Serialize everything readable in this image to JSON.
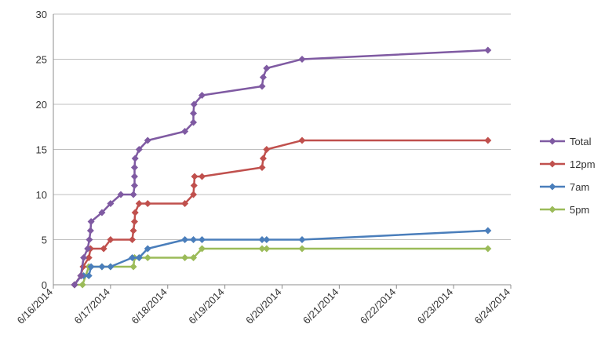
{
  "chart_data": {
    "type": "line",
    "title": "",
    "xlabel": "",
    "ylabel": "",
    "ylim": [
      0,
      30
    ],
    "y_ticks": [
      0,
      5,
      10,
      15,
      20,
      25,
      30
    ],
    "x_ticks": [
      "6/16/2014",
      "6/17/2014",
      "6/18/2014",
      "6/19/2014",
      "6/20/2014",
      "6/21/2014",
      "6/22/2014",
      "6/23/2014",
      "6/24/2014"
    ],
    "grid": "horizontal",
    "legend_position": "right",
    "series": [
      {
        "name": "Total",
        "color": "#7f5aa2",
        "points": [
          [
            0.37,
            0
          ],
          [
            0.48,
            1
          ],
          [
            0.53,
            3
          ],
          [
            0.6,
            4
          ],
          [
            0.63,
            5
          ],
          [
            0.65,
            6
          ],
          [
            0.66,
            7
          ],
          [
            0.85,
            8
          ],
          [
            1.0,
            9
          ],
          [
            1.18,
            10
          ],
          [
            1.4,
            10
          ],
          [
            1.42,
            11
          ],
          [
            1.42,
            12
          ],
          [
            1.42,
            13
          ],
          [
            1.43,
            14
          ],
          [
            1.5,
            15
          ],
          [
            1.65,
            16
          ],
          [
            2.3,
            17
          ],
          [
            2.45,
            18
          ],
          [
            2.45,
            19
          ],
          [
            2.46,
            20
          ],
          [
            2.6,
            21
          ],
          [
            3.65,
            22
          ],
          [
            3.67,
            23
          ],
          [
            3.73,
            24
          ],
          [
            4.35,
            25
          ],
          [
            7.6,
            26
          ]
        ]
      },
      {
        "name": "12pm",
        "color": "#c0504d",
        "points": [
          [
            0.37,
            0
          ],
          [
            0.48,
            1
          ],
          [
            0.52,
            2
          ],
          [
            0.62,
            3
          ],
          [
            0.65,
            4
          ],
          [
            0.88,
            4
          ],
          [
            1.0,
            5
          ],
          [
            1.38,
            5
          ],
          [
            1.4,
            6
          ],
          [
            1.42,
            7
          ],
          [
            1.43,
            8
          ],
          [
            1.5,
            9
          ],
          [
            1.65,
            9
          ],
          [
            2.3,
            9
          ],
          [
            2.45,
            10
          ],
          [
            2.46,
            11
          ],
          [
            2.47,
            12
          ],
          [
            2.6,
            12
          ],
          [
            3.65,
            13
          ],
          [
            3.67,
            14
          ],
          [
            3.73,
            15
          ],
          [
            4.35,
            16
          ],
          [
            7.6,
            16
          ]
        ]
      },
      {
        "name": "7am",
        "color": "#4a7ebb",
        "points": [
          [
            0.37,
            0
          ],
          [
            0.49,
            1
          ],
          [
            0.53,
            1
          ],
          [
            0.62,
            1
          ],
          [
            0.66,
            2
          ],
          [
            0.85,
            2
          ],
          [
            1.0,
            2
          ],
          [
            1.38,
            3
          ],
          [
            1.5,
            3
          ],
          [
            1.65,
            4
          ],
          [
            2.3,
            5
          ],
          [
            2.45,
            5
          ],
          [
            2.6,
            5
          ],
          [
            3.65,
            5
          ],
          [
            3.73,
            5
          ],
          [
            4.35,
            5
          ],
          [
            7.6,
            6
          ]
        ]
      },
      {
        "name": "5pm",
        "color": "#9bbb59",
        "points": [
          [
            0.37,
            0
          ],
          [
            0.51,
            0
          ],
          [
            0.62,
            2
          ],
          [
            0.85,
            2
          ],
          [
            1.0,
            2
          ],
          [
            1.4,
            2
          ],
          [
            1.42,
            3
          ],
          [
            1.5,
            3
          ],
          [
            1.65,
            3
          ],
          [
            2.3,
            3
          ],
          [
            2.45,
            3
          ],
          [
            2.6,
            4
          ],
          [
            3.65,
            4
          ],
          [
            3.73,
            4
          ],
          [
            4.35,
            4
          ],
          [
            7.6,
            4
          ]
        ]
      }
    ]
  }
}
